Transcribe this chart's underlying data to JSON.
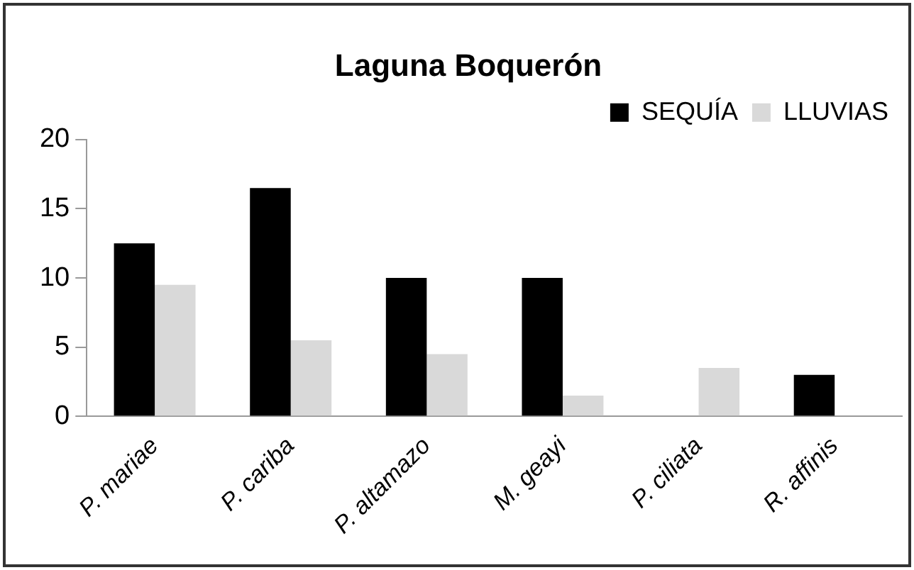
{
  "chart_data": {
    "type": "bar",
    "title": "Laguna Boquerón",
    "categories": [
      "P. mariae",
      "P. cariba",
      "P. altamazo",
      "M. geayi",
      "P. ciliata",
      "R. affinis"
    ],
    "series": [
      {
        "name": "SEQUÍA",
        "color": "#000000",
        "values": [
          12.5,
          16.5,
          10,
          10,
          0,
          3
        ]
      },
      {
        "name": "LLUVIAS",
        "color": "#d9d9d9",
        "values": [
          9.5,
          5.5,
          4.5,
          1.5,
          3.5,
          0
        ]
      }
    ],
    "ylim": [
      0,
      20
    ],
    "yticks": [
      0,
      5,
      10,
      15,
      20
    ],
    "grid": false,
    "legend": "top right"
  }
}
